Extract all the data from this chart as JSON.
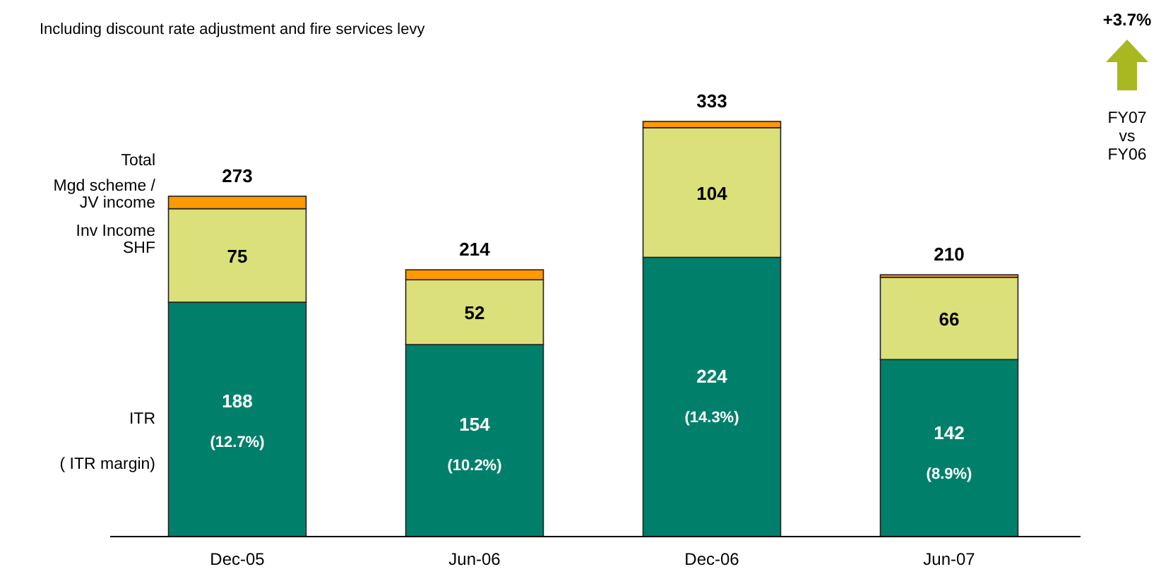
{
  "chart_data": {
    "type": "bar",
    "stacked": true,
    "subtitle": "Including discount rate adjustment and fire services levy",
    "categories": [
      "Dec-05",
      "Jun-06",
      "Dec-06",
      "Jun-07"
    ],
    "series": [
      {
        "name": "ITR",
        "color": "#00806a",
        "values": [
          188,
          154,
          224,
          142
        ],
        "value_labels": [
          "188",
          "154",
          "224",
          "142"
        ]
      },
      {
        "name": "Inv Income SHF",
        "color": "#dce07a",
        "values": [
          75,
          52,
          104,
          66
        ],
        "value_labels": [
          "75",
          "52",
          "104",
          "66"
        ]
      },
      {
        "name": "Mgd scheme / JV income",
        "color": "#ff9900",
        "values": [
          10,
          8,
          5,
          2
        ],
        "value_labels": [
          null,
          null,
          null,
          null
        ]
      }
    ],
    "totals": [
      "273",
      "214",
      "333",
      "210"
    ],
    "legend": "left",
    "annotations": [
      "Total",
      "( ITR margin)",
      "+3.7%",
      "FY07 vs FY06",
      "(12.7%)",
      "(10.2%)",
      "(14.3%)",
      "(8.9%)"
    ]
  }
}
